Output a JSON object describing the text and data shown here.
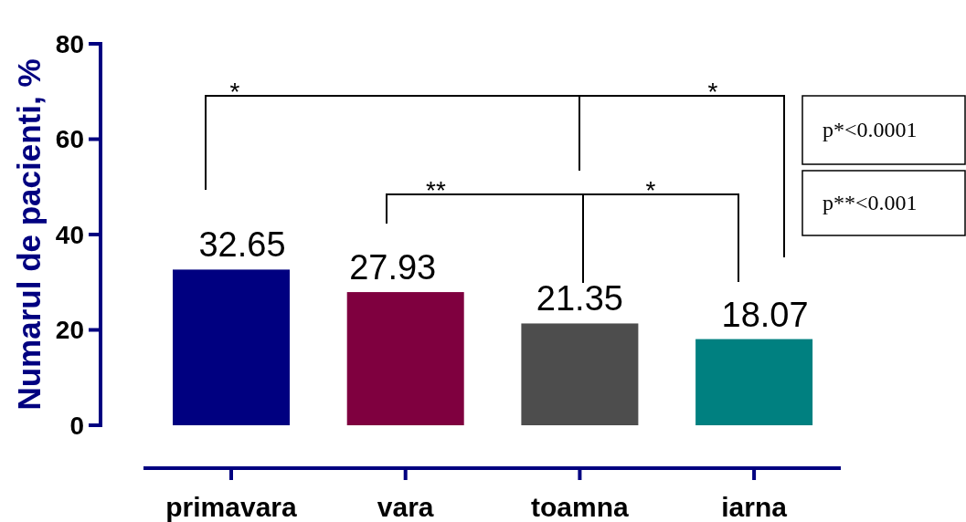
{
  "chart_data": {
    "type": "bar",
    "categories": [
      "primavara",
      "vara",
      "toamna",
      "iarna"
    ],
    "values": [
      32.65,
      27.93,
      21.35,
      18.07
    ],
    "colors": [
      "#000080",
      "#7f003f",
      "#4d4d4d",
      "#008080"
    ],
    "ylabel": "Numarul de pacienti, %",
    "ylim": [
      0,
      80
    ],
    "yticks": [
      0,
      20,
      40,
      60,
      80
    ],
    "data_labels": true,
    "annotations": [
      "*",
      "*",
      "**",
      "*",
      "p*<0.0001",
      "p**<0.001"
    ]
  }
}
